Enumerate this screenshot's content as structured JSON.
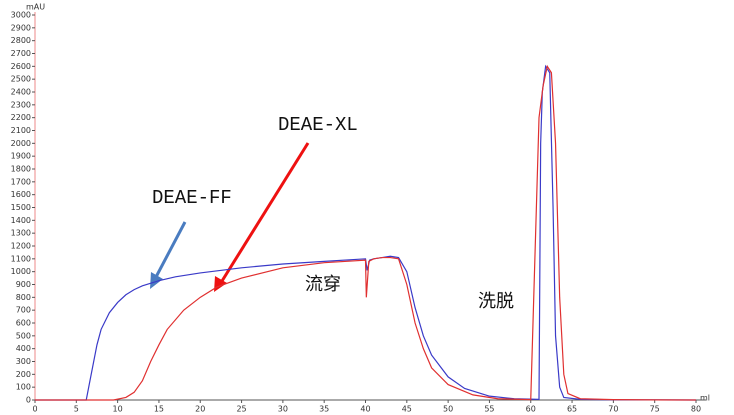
{
  "chart_data": {
    "type": "line",
    "y_label": "mAU",
    "x_label": "ml",
    "xlim": [
      0,
      80
    ],
    "ylim": [
      0,
      3000
    ],
    "xticks": [
      0,
      5,
      10,
      15,
      20,
      25,
      30,
      35,
      40,
      45,
      50,
      55,
      60,
      65,
      70,
      75,
      80
    ],
    "yticks": [
      0,
      100,
      200,
      300,
      400,
      500,
      600,
      700,
      800,
      900,
      1000,
      1100,
      1200,
      1300,
      1400,
      1500,
      1600,
      1700,
      1800,
      1900,
      2000,
      2100,
      2200,
      2300,
      2400,
      2500,
      2600,
      2700,
      2800,
      2900,
      3000
    ],
    "grid": false,
    "series": [
      {
        "name": "DEAE-FF",
        "color": "#3a3ac8",
        "x": [
          0,
          6.2,
          6.8,
          7.5,
          8,
          9,
          10,
          11,
          12,
          13,
          15,
          17,
          20,
          25,
          30,
          35,
          40,
          40.2,
          40.5,
          41,
          42,
          43,
          44,
          45,
          46,
          47,
          48,
          50,
          52,
          55,
          58,
          61,
          61.2,
          61.4,
          61.8,
          62.3,
          62.7,
          63,
          63.5,
          64,
          66,
          70,
          75,
          80
        ],
        "values": [
          0,
          0,
          200,
          430,
          550,
          680,
          760,
          820,
          860,
          890,
          930,
          960,
          990,
          1030,
          1060,
          1080,
          1100,
          1010,
          1090,
          1100,
          1110,
          1120,
          1110,
          1000,
          720,
          500,
          350,
          180,
          90,
          30,
          10,
          5,
          2000,
          2400,
          2600,
          2550,
          1500,
          500,
          100,
          20,
          5,
          2,
          1,
          0
        ]
      },
      {
        "name": "DEAE-XL",
        "color": "#e03030",
        "x": [
          0,
          9.5,
          11,
          12,
          13,
          14,
          15,
          16,
          18,
          20,
          22,
          25,
          30,
          35,
          40,
          40.1,
          40.4,
          41,
          42,
          43,
          44,
          45,
          46,
          47,
          48,
          50,
          53,
          56,
          60,
          61,
          61.5,
          62,
          62.5,
          63,
          63.5,
          64,
          64.5,
          66,
          70,
          75,
          80
        ],
        "values": [
          0,
          0,
          20,
          60,
          150,
          300,
          430,
          550,
          700,
          800,
          880,
          950,
          1030,
          1070,
          1090,
          800,
          1080,
          1100,
          1110,
          1110,
          1100,
          900,
          600,
          400,
          250,
          120,
          40,
          10,
          3,
          2200,
          2450,
          2600,
          2550,
          2000,
          800,
          200,
          50,
          10,
          3,
          1,
          0
        ]
      }
    ],
    "annotations": [
      "流穿",
      "洗脱"
    ]
  }
}
